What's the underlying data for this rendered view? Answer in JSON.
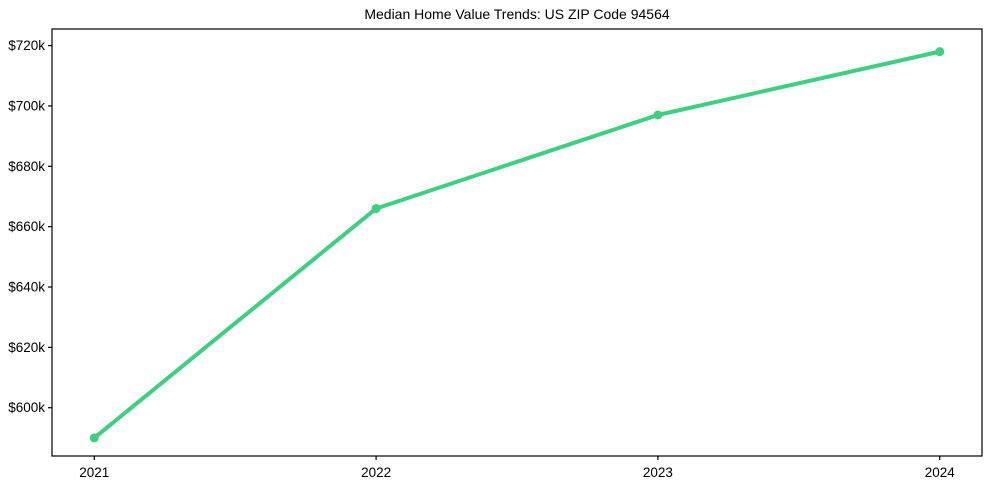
{
  "chart_data": {
    "type": "line",
    "title": "Median Home Value Trends: US ZIP Code 94564",
    "xlabel": "",
    "ylabel": "",
    "x": [
      2021,
      2022,
      2023,
      2024
    ],
    "x_tick_labels": [
      "2021",
      "2022",
      "2023",
      "2024"
    ],
    "series": [
      {
        "name": "Median Home Value",
        "values": [
          590000,
          666000,
          697000,
          718000
        ]
      }
    ],
    "y_ticks": [
      {
        "value": 600000,
        "label": "$600k"
      },
      {
        "value": 620000,
        "label": "$620k"
      },
      {
        "value": 640000,
        "label": "$640k"
      },
      {
        "value": 660000,
        "label": "$660k"
      },
      {
        "value": 680000,
        "label": "$680k"
      },
      {
        "value": 700000,
        "label": "$700k"
      },
      {
        "value": 720000,
        "label": "$720k"
      }
    ],
    "xlim": [
      2020.85,
      2024.15
    ],
    "ylim": [
      584000,
      725500
    ],
    "grid": false,
    "legend": "none",
    "marker": "circle",
    "line_color": "#3ecf80",
    "axis_color": "#000000",
    "text_color": "#000000",
    "background_color": "#ffffff"
  }
}
